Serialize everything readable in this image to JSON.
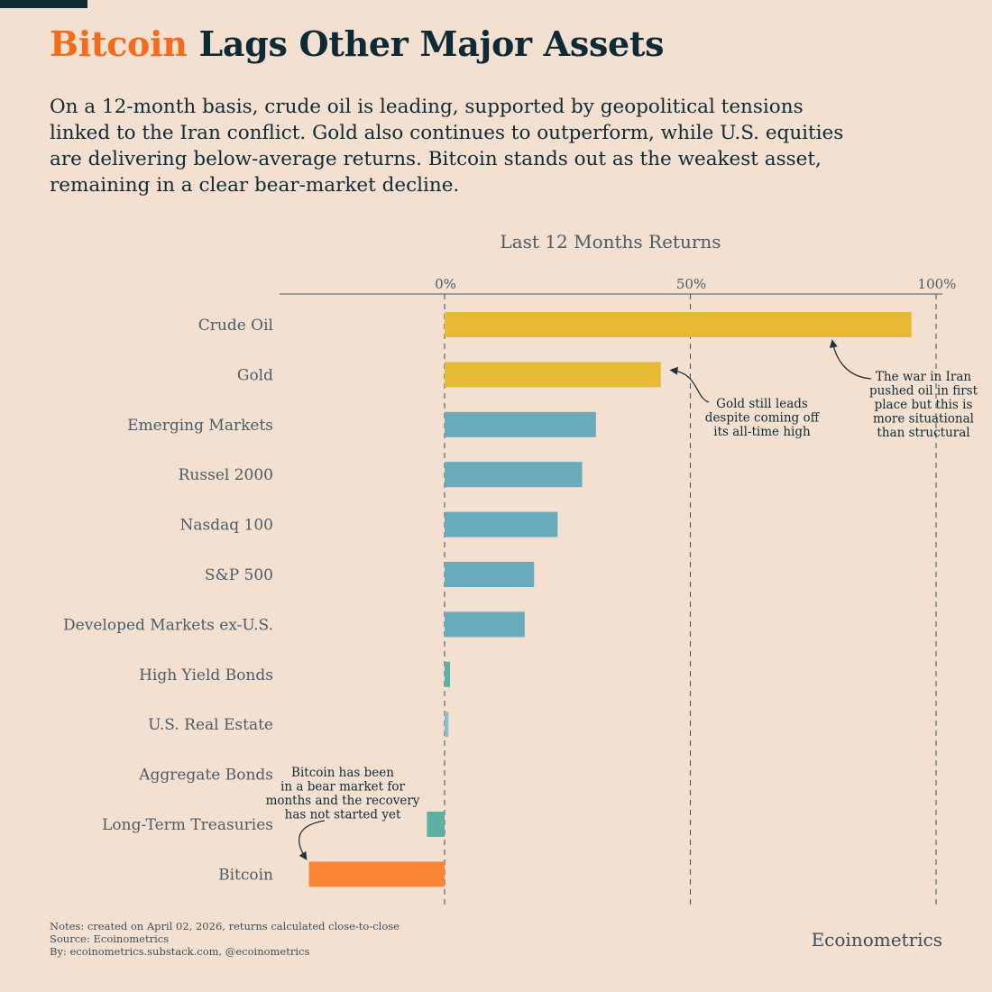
{
  "header": {
    "title_highlight": "Bitcoin",
    "title_rest": " Lags Other Major Assets",
    "subtitle": "On a 12-month basis, crude oil is leading, supported by geopolitical tensions linked to the Iran conflict. Gold also continues to outperform, while U.S. equities are delivering below-average returns. Bitcoin stands out as the weakest asset, remaining in a clear bear-market decline."
  },
  "chart_data": {
    "type": "bar",
    "orientation": "horizontal",
    "title": "Last 12 Months Returns",
    "xlim": [
      -34,
      100
    ],
    "ticks": [
      0,
      50,
      100
    ],
    "tick_labels": [
      "0%",
      "50%",
      "100%"
    ],
    "grid": "dashed vertical lines at ticks",
    "categories": [
      "Crude Oil",
      "Gold",
      "Emerging Markets",
      "Russel 2000",
      "Nasdaq 100",
      "S&P 500",
      "Developed Markets ex-U.S.",
      "High Yield Bonds",
      "U.S. Real Estate",
      "Aggregate Bonds",
      "Long-Term Treasuries",
      "Bitcoin"
    ],
    "values": [
      95.0,
      44.0,
      30.8,
      28.0,
      23.0,
      18.2,
      16.3,
      1.1,
      0.8,
      0.0,
      -3.6,
      -27.6
    ],
    "colors": [
      "#e8b935",
      "#e8b935",
      "#6aabbb",
      "#6aabbb",
      "#6aabbb",
      "#6aabbb",
      "#6aabbb",
      "#5db1a3",
      "#8fbcc6",
      "#5db1a3",
      "#5db1a3",
      "#fb8537"
    ],
    "annotations": [
      {
        "target": "Crude Oil",
        "value": 80,
        "lines": [
          "The war in Iran",
          "pushed oil in first",
          "place but this is",
          "more situational",
          "than structural"
        ]
      },
      {
        "target": "Gold",
        "value": 45,
        "lines": [
          "Gold still leads",
          "despite coming off",
          "its all-time high"
        ]
      },
      {
        "target": "Bitcoin",
        "value": -28,
        "lines": [
          "Bitcoin has been",
          "in a bear market for",
          "months and the recovery",
          "has not started yet"
        ]
      }
    ]
  },
  "footer": {
    "notes": [
      "Notes: created on April 02, 2026, returns calculated close-to-close",
      "Source: Ecoinometrics",
      "By: ecoinometrics.substack.com, @ecoinometrics"
    ],
    "brand": "Ecoinometrics"
  },
  "colors": {
    "background": "#f3e0d0",
    "title": "#0e2a36",
    "highlight": "#f46b1c",
    "gold": "#e8b935",
    "equities": "#6aabbb",
    "bonds": "#5db1a3",
    "bitcoin": "#fb8537"
  }
}
